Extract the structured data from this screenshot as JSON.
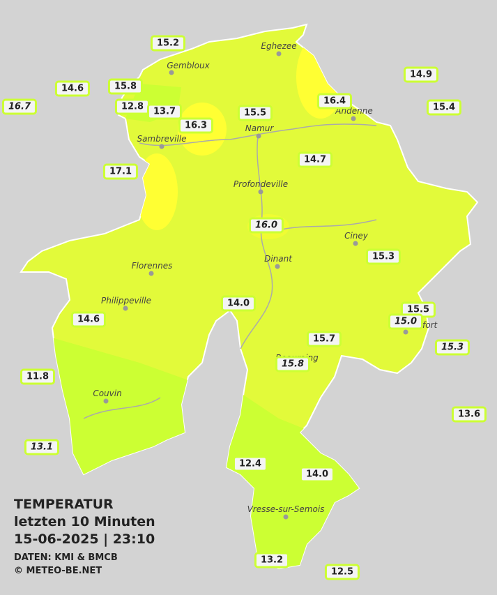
{
  "info": {
    "title": "TEMPERATUR",
    "period": "letzten 10 Minuten",
    "timestamp": "15-06-2025  |  23:10",
    "source": "DATEN: KMI & BMCB",
    "copyright": "© METEO-BE.NET"
  },
  "cities": [
    "Eghezee",
    "Gembloux",
    "Andenne",
    "Namur",
    "Sambreville",
    "Profondeville",
    "Ciney",
    "Dinant",
    "Florennes",
    "Philippeville",
    "Rochefort",
    "Beauraing",
    "Couvin",
    "Vresse-sur-Semois"
  ],
  "stations": [
    {
      "label": "15.2",
      "italic": false
    },
    {
      "label": "14.6",
      "italic": false
    },
    {
      "label": "15.8",
      "italic": false
    },
    {
      "label": "16.7",
      "italic": true
    },
    {
      "label": "12.8",
      "italic": false
    },
    {
      "label": "13.7",
      "italic": false
    },
    {
      "label": "16.3",
      "italic": false
    },
    {
      "label": "15.5",
      "italic": false
    },
    {
      "label": "16.4",
      "italic": false
    },
    {
      "label": "14.9",
      "italic": false
    },
    {
      "label": "15.4",
      "italic": false
    },
    {
      "label": "17.1",
      "italic": false
    },
    {
      "label": "14.7",
      "italic": false
    },
    {
      "label": "16.0",
      "italic": true
    },
    {
      "label": "15.3",
      "italic": false
    },
    {
      "label": "14.0",
      "italic": false
    },
    {
      "label": "14.6",
      "italic": false
    },
    {
      "label": "15.5",
      "italic": false
    },
    {
      "label": "15.0",
      "italic": true
    },
    {
      "label": "15.7",
      "italic": false
    },
    {
      "label": "15.3",
      "italic": true
    },
    {
      "label": "15.8",
      "italic": true
    },
    {
      "label": "11.8",
      "italic": false
    },
    {
      "label": "13.6",
      "italic": false
    },
    {
      "label": "13.1",
      "italic": true
    },
    {
      "label": "12.4",
      "italic": false
    },
    {
      "label": "14.0",
      "italic": false
    },
    {
      "label": "13.2",
      "italic": false
    },
    {
      "label": "12.5",
      "italic": false
    }
  ]
}
